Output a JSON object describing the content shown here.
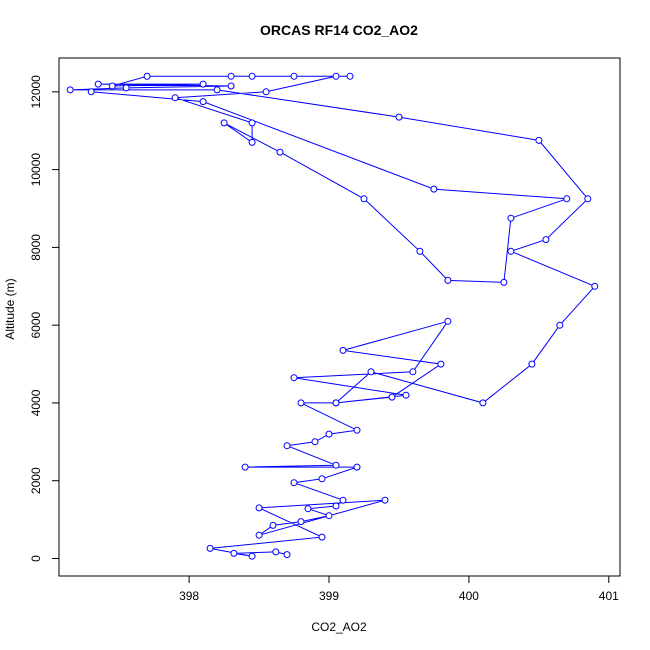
{
  "chart_data": {
    "type": "line",
    "title": "ORCAS RF14 CO2_AO2",
    "xlabel": "CO2_AO2",
    "ylabel": "Altitude (m)",
    "xlim": [
      397.07,
      401.08
    ],
    "ylim": [
      -450,
      12870
    ],
    "x_ticks": [
      398,
      399,
      400,
      401
    ],
    "y_ticks": [
      0,
      2000,
      4000,
      6000,
      8000,
      10000,
      12000
    ],
    "x_tick_labels": [
      "398",
      "399",
      "400",
      "401"
    ],
    "y_tick_labels": [
      "0",
      "2000",
      "4000",
      "6000",
      "8000",
      "10000",
      "12000"
    ],
    "grid": false,
    "series": [
      {
        "color": "#0000ff",
        "marker": "open-circle",
        "points": [
          [
            398.7,
            100
          ],
          [
            398.62,
            170
          ],
          [
            398.32,
            130
          ],
          [
            398.45,
            60
          ],
          [
            398.15,
            260
          ],
          [
            398.95,
            550
          ],
          [
            398.5,
            1300
          ],
          [
            399.4,
            1500
          ],
          [
            398.5,
            600
          ],
          [
            398.6,
            850
          ],
          [
            398.8,
            950
          ],
          [
            399.0,
            1100
          ],
          [
            398.85,
            1280
          ],
          [
            399.05,
            1350
          ],
          [
            399.1,
            1500
          ],
          [
            398.75,
            1950
          ],
          [
            398.95,
            2050
          ],
          [
            399.2,
            2350
          ],
          [
            398.4,
            2350
          ],
          [
            399.05,
            2400
          ],
          [
            398.7,
            2900
          ],
          [
            398.9,
            3000
          ],
          [
            399.0,
            3200
          ],
          [
            399.2,
            3300
          ],
          [
            398.8,
            4000
          ],
          [
            399.05,
            4000
          ],
          [
            399.55,
            4200
          ],
          [
            398.75,
            4650
          ],
          [
            399.6,
            4800
          ],
          [
            399.85,
            6100
          ],
          [
            399.1,
            5350
          ],
          [
            399.8,
            5000
          ],
          [
            399.45,
            4150
          ],
          [
            399.05,
            4000
          ],
          [
            399.3,
            4800
          ],
          [
            400.1,
            4000
          ],
          [
            400.45,
            5000
          ],
          [
            400.65,
            6000
          ],
          [
            400.9,
            7000
          ],
          [
            400.3,
            7900
          ],
          [
            400.55,
            8200
          ],
          [
            400.85,
            9250
          ],
          [
            400.5,
            10750
          ],
          [
            399.5,
            11350
          ],
          [
            398.2,
            12050
          ],
          [
            397.15,
            12050
          ],
          [
            397.55,
            12100
          ],
          [
            398.3,
            12150
          ],
          [
            397.35,
            12200
          ],
          [
            398.1,
            12200
          ],
          [
            397.45,
            12150
          ],
          [
            397.7,
            12400
          ],
          [
            398.3,
            12400
          ],
          [
            398.75,
            12400
          ],
          [
            399.15,
            12400
          ],
          [
            398.45,
            12400
          ],
          [
            399.05,
            12400
          ],
          [
            398.55,
            12000
          ],
          [
            397.9,
            11850
          ],
          [
            398.45,
            11200
          ],
          [
            398.45,
            10700
          ],
          [
            398.25,
            11200
          ],
          [
            398.65,
            10450
          ],
          [
            399.25,
            9250
          ],
          [
            399.65,
            7900
          ],
          [
            399.85,
            7150
          ],
          [
            400.25,
            7100
          ],
          [
            400.3,
            8750
          ],
          [
            400.7,
            9250
          ],
          [
            399.75,
            9500
          ],
          [
            398.1,
            11750
          ],
          [
            397.3,
            12000
          ]
        ]
      }
    ]
  }
}
